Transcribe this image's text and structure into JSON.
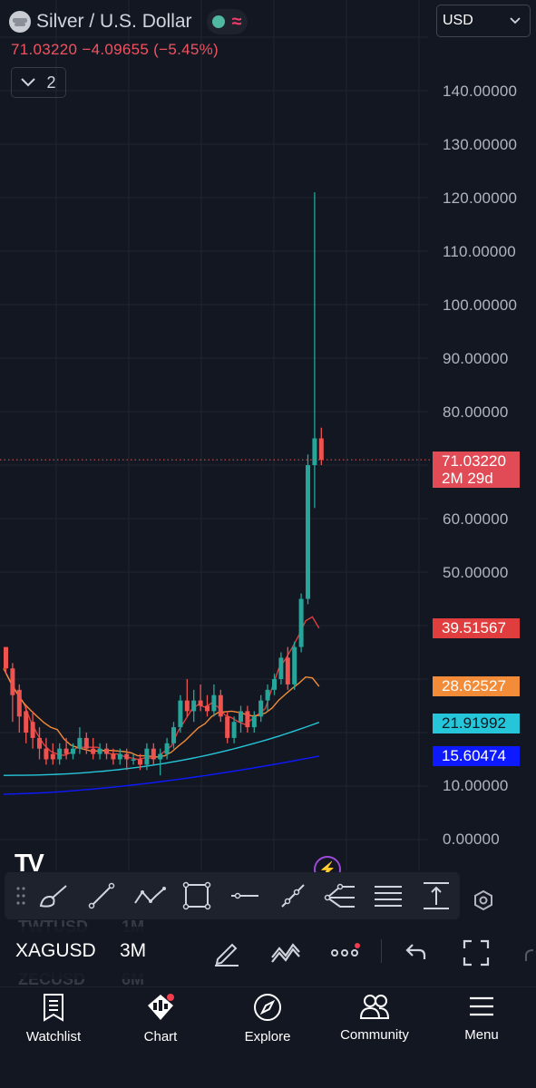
{
  "header": {
    "title": "Silver / U.S. Dollar",
    "price": "71.03220",
    "change": "−4.09655",
    "change_pct": "(−5.45%)",
    "indicator_count": "2",
    "currency": "USD"
  },
  "axis": {
    "labels": [
      "140.00000",
      "130.00000",
      "120.00000",
      "110.00000",
      "100.00000",
      "90.00000",
      "80.00000",
      "60.00000",
      "50.00000",
      "10.00000",
      "0.00000"
    ]
  },
  "price_tags": {
    "last": {
      "value": "71.03220",
      "countdown": "2M 29d",
      "color": "#e04b56"
    },
    "ma1": {
      "value": "39.51567",
      "color": "#e03e3e"
    },
    "ma2": {
      "value": "28.62527",
      "color": "#f28c38"
    },
    "ma3": {
      "value": "21.91992",
      "color": "#26c6da"
    },
    "ma4": {
      "value": "15.60474",
      "color": "#0d1aff"
    }
  },
  "colors": {
    "up": "#26a69a",
    "down": "#ef5350",
    "background": "#131722"
  },
  "chart_data": {
    "type": "candlestick",
    "y_axis_range": [
      0,
      150
    ],
    "candles_ohlc": [
      [
        36,
        35,
        31,
        32
      ],
      [
        32,
        33,
        22,
        27
      ],
      [
        28,
        29,
        20,
        23
      ],
      [
        24,
        25,
        18,
        20
      ],
      [
        22,
        24,
        17,
        19
      ],
      [
        19,
        21,
        15,
        17
      ],
      [
        17,
        19,
        14,
        15
      ],
      [
        16,
        18,
        14,
        15
      ],
      [
        15,
        18,
        14,
        17
      ],
      [
        17,
        19,
        15,
        16
      ],
      [
        16,
        18,
        15,
        17
      ],
      [
        17,
        21,
        16,
        19
      ],
      [
        19,
        20,
        16,
        17
      ],
      [
        17,
        19,
        15,
        16
      ],
      [
        16,
        18,
        15,
        17
      ],
      [
        17,
        18,
        15,
        16
      ],
      [
        16,
        17,
        14,
        15
      ],
      [
        15,
        17,
        14,
        16
      ],
      [
        16,
        17,
        13,
        15
      ],
      [
        15,
        16,
        14,
        15
      ],
      [
        15,
        16,
        13,
        14
      ],
      [
        14,
        18,
        13,
        17
      ],
      [
        17,
        18,
        14,
        15
      ],
      [
        15,
        17,
        12,
        16
      ],
      [
        16,
        19,
        15,
        18
      ],
      [
        18,
        22,
        17,
        21
      ],
      [
        21,
        27,
        20,
        26
      ],
      [
        26,
        30,
        23,
        24
      ],
      [
        24,
        28,
        22,
        26
      ],
      [
        26,
        29,
        24,
        25
      ],
      [
        25,
        27,
        23,
        24
      ],
      [
        24,
        29,
        23,
        27
      ],
      [
        27,
        28,
        22,
        23
      ],
      [
        23,
        24,
        18,
        19
      ],
      [
        19,
        23,
        18,
        22
      ],
      [
        22,
        25,
        20,
        24
      ],
      [
        24,
        25,
        20,
        21
      ],
      [
        21,
        24,
        20,
        23
      ],
      [
        23,
        27,
        22,
        26
      ],
      [
        26,
        29,
        24,
        28
      ],
      [
        28,
        31,
        27,
        30
      ],
      [
        30,
        35,
        29,
        34
      ],
      [
        34,
        36,
        28,
        29
      ],
      [
        29,
        37,
        28,
        36
      ],
      [
        36,
        46,
        35,
        45
      ],
      [
        45,
        72,
        44,
        70
      ],
      [
        70,
        121,
        62,
        75
      ],
      [
        75,
        77,
        70,
        71
      ]
    ],
    "moving_averages": [
      {
        "last": 39.51567
      },
      {
        "last": 28.62527
      },
      {
        "last": 21.91992
      },
      {
        "last": 15.60474
      }
    ]
  },
  "drawing_tools": [
    "brush-tool-icon",
    "trend-line-icon",
    "path-icon",
    "rectangle-icon",
    "horizontal-line-icon",
    "ray-icon",
    "pitchfork-icon",
    "fib-retracement-icon",
    "price-range-icon"
  ],
  "background_list": {
    "row1_symbol": "TWTUSD",
    "row1_interval": "1M",
    "row2_symbol": "ZECUSD",
    "row2_interval": "6M"
  },
  "timeframe_bar": {
    "symbol": "XAGUSD",
    "interval": "3M"
  },
  "nav": [
    {
      "label": "Watchlist",
      "icon": "watchlist-icon"
    },
    {
      "label": "Chart",
      "icon": "chart-icon"
    },
    {
      "label": "Explore",
      "icon": "compass-icon"
    },
    {
      "label": "Community",
      "icon": "community-icon"
    },
    {
      "label": "Menu",
      "icon": "menu-icon"
    }
  ]
}
